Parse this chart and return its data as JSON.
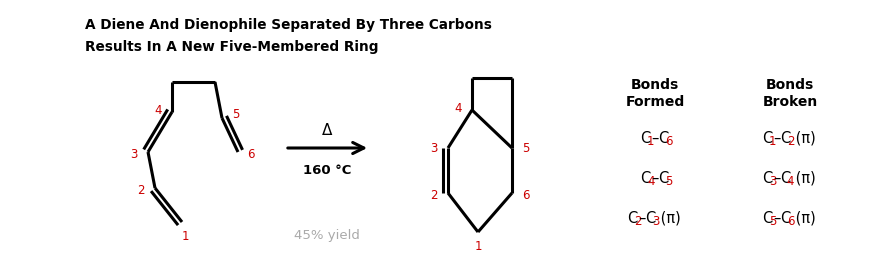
{
  "title_line1": "A Diene And Dienophile Separated By Three Carbons",
  "title_line2": "Results In A New Five-Membered Ring",
  "arrow_label_top": "Δ",
  "arrow_label_bottom": "160 °C",
  "yield_label": "45% yield",
  "red_color": "#cc0000",
  "black_color": "#000000",
  "gray_color": "#aaaaaa",
  "bg_color": "#ffffff",
  "bonds_formed_col": [
    [
      [
        "C",
        "k"
      ],
      [
        "1",
        "r"
      ],
      [
        "–",
        "k"
      ],
      [
        "C",
        "k"
      ],
      [
        "6",
        "r"
      ]
    ],
    [
      [
        "C",
        "k"
      ],
      [
        "4",
        "r"
      ],
      [
        "–",
        "k"
      ],
      [
        "C",
        "k"
      ],
      [
        "5",
        "r"
      ]
    ],
    [
      [
        "C",
        "k"
      ],
      [
        "2",
        "r"
      ],
      [
        "–",
        "k"
      ],
      [
        "C",
        "k"
      ],
      [
        "3",
        "r"
      ],
      [
        " (π)",
        "k"
      ]
    ]
  ],
  "bonds_broken_col": [
    [
      [
        "C",
        "k"
      ],
      [
        "1",
        "r"
      ],
      [
        "–",
        "k"
      ],
      [
        "C",
        "k"
      ],
      [
        "2",
        "r"
      ],
      [
        " (π)",
        "k"
      ]
    ],
    [
      [
        "C",
        "k"
      ],
      [
        "3",
        "r"
      ],
      [
        "–",
        "k"
      ],
      [
        "C",
        "k"
      ],
      [
        "4",
        "r"
      ],
      [
        " (π)",
        "k"
      ]
    ],
    [
      [
        "C",
        "k"
      ],
      [
        "5",
        "r"
      ],
      [
        "–",
        "k"
      ],
      [
        "C",
        "k"
      ],
      [
        "6",
        "r"
      ],
      [
        " (π)",
        "k"
      ]
    ]
  ]
}
